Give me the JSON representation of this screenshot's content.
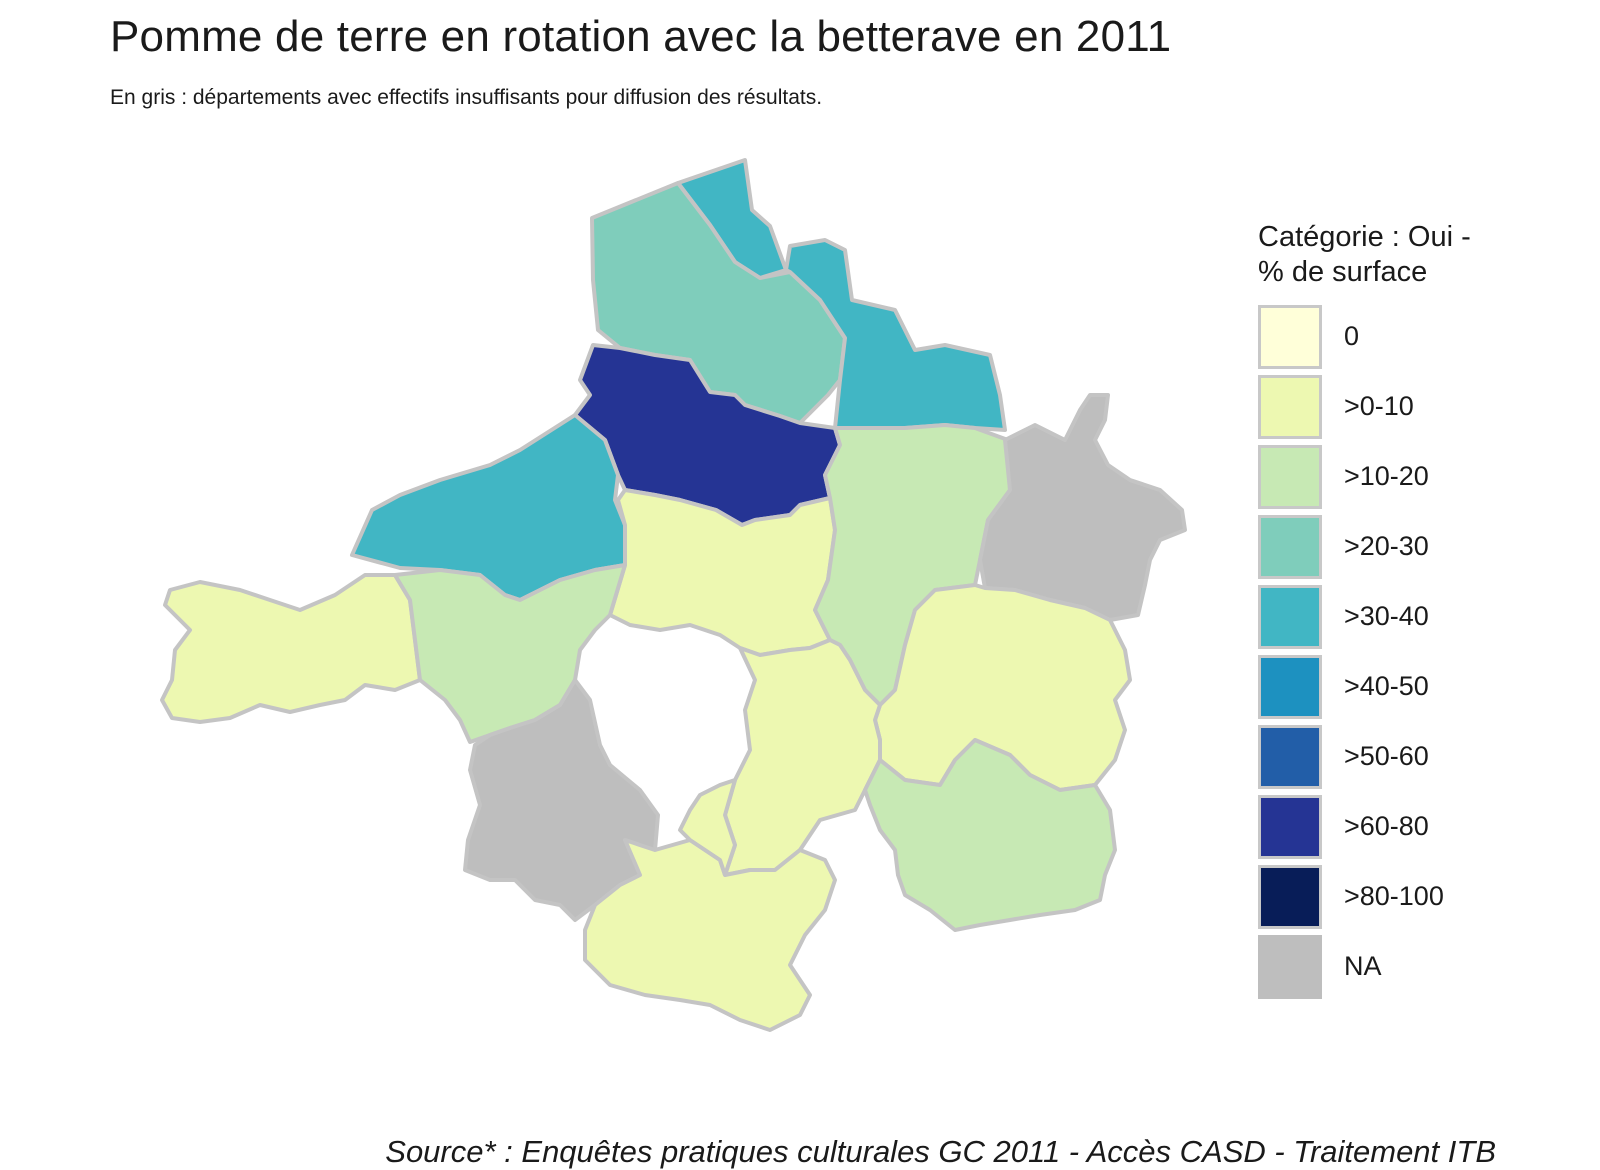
{
  "title": "Pomme de terre en rotation avec la betterave en 2011",
  "subtitle": "En gris : départements avec effectifs insuffisants pour diffusion des résultats.",
  "legend": {
    "title_line1": "Catégorie : Oui -",
    "title_line2": "% de surface",
    "items": [
      {
        "label": "0",
        "color": "#ffffd9"
      },
      {
        "label": ">0-10",
        "color": "#edf8b1"
      },
      {
        "label": ">10-20",
        "color": "#c7e9b4"
      },
      {
        "label": ">20-30",
        "color": "#7fcdbb"
      },
      {
        "label": ">30-40",
        "color": "#41b6c4"
      },
      {
        "label": ">40-50",
        "color": "#1d91c0"
      },
      {
        "label": ">50-60",
        "color": "#225ea8"
      },
      {
        "label": ">60-80",
        "color": "#253494"
      },
      {
        "label": ">80-100",
        "color": "#081d58"
      },
      {
        "label": "NA",
        "color": "#bebebe"
      }
    ]
  },
  "map_data": {
    "departments": [
      {
        "category": ">30-40"
      },
      {
        "category": ">20-30"
      },
      {
        "category": ">30-40"
      },
      {
        "category": ">60-80"
      },
      {
        "category": ">30-40"
      },
      {
        "category": ">0-10"
      },
      {
        "category": ">10-20"
      },
      {
        "category": "NA"
      },
      {
        "category": ">0-10"
      },
      {
        "category": ">10-20"
      },
      {
        "category": ">0-10"
      },
      {
        "category": ">0-10"
      },
      {
        "category": "NA"
      },
      {
        "category": ">0-10"
      },
      {
        "category": ">10-20"
      },
      {
        "category": ">0-10"
      }
    ]
  },
  "caption": "Source* : Enquêtes pratiques culturales GC 2011 - Accès CASD - Traitement ITB"
}
